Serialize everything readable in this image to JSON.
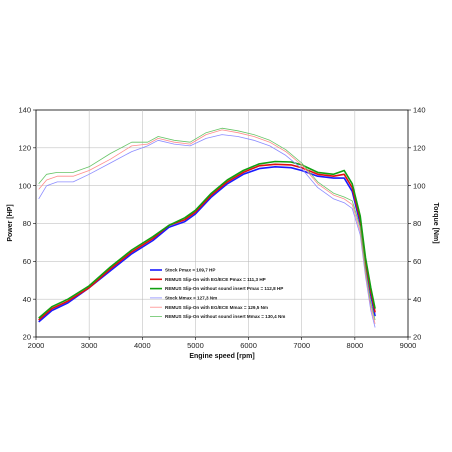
{
  "chart_data": {
    "type": "line",
    "xlabel": "Engine speed [rpm]",
    "ylabel_left": "Power [HP]",
    "ylabel_right": "Torque [Nm]",
    "xlim": [
      2000,
      9000
    ],
    "ylim_left": [
      20,
      140
    ],
    "ylim_right": [
      20,
      140
    ],
    "x_ticks": [
      "2000",
      "3000",
      "4000",
      "5000",
      "6000",
      "7000",
      "8000",
      "9000"
    ],
    "y_ticks_left": [
      "20",
      "40",
      "60",
      "80",
      "100",
      "120",
      "140"
    ],
    "y_ticks_right": [
      "20",
      "40",
      "60",
      "80",
      "100",
      "120",
      "140"
    ],
    "grid": true,
    "legend_position": "lower-right",
    "series": [
      {
        "name": "Stock Pmax = 109,7 HP",
        "axis": "left",
        "color": "#1a1aff",
        "width": 1.6,
        "points": [
          [
            2050,
            28
          ],
          [
            2300,
            34
          ],
          [
            2600,
            38
          ],
          [
            3000,
            46
          ],
          [
            3400,
            55
          ],
          [
            3800,
            64
          ],
          [
            4200,
            71
          ],
          [
            4500,
            78
          ],
          [
            4800,
            81
          ],
          [
            5000,
            85
          ],
          [
            5300,
            94
          ],
          [
            5600,
            101
          ],
          [
            5900,
            106
          ],
          [
            6200,
            109
          ],
          [
            6500,
            110
          ],
          [
            6800,
            109.5
          ],
          [
            7000,
            108
          ],
          [
            7300,
            105
          ],
          [
            7600,
            104
          ],
          [
            7800,
            104
          ],
          [
            7950,
            97
          ],
          [
            8100,
            80
          ],
          [
            8200,
            58
          ],
          [
            8300,
            42
          ],
          [
            8380,
            31
          ]
        ]
      },
      {
        "name": "REMUS Slip-On with EG/ECE Pmax = 111,3 HP",
        "axis": "left",
        "color": "#e01010",
        "width": 1.6,
        "points": [
          [
            2050,
            29
          ],
          [
            2300,
            35
          ],
          [
            2600,
            39
          ],
          [
            3000,
            46
          ],
          [
            3400,
            56
          ],
          [
            3800,
            65
          ],
          [
            4200,
            72
          ],
          [
            4500,
            79
          ],
          [
            4800,
            82
          ],
          [
            5000,
            86
          ],
          [
            5300,
            95
          ],
          [
            5600,
            102
          ],
          [
            5900,
            107
          ],
          [
            6200,
            110.5
          ],
          [
            6500,
            111.3
          ],
          [
            6800,
            111
          ],
          [
            7000,
            109.5
          ],
          [
            7300,
            106
          ],
          [
            7600,
            105
          ],
          [
            7800,
            106
          ],
          [
            7950,
            99
          ],
          [
            8100,
            82
          ],
          [
            8200,
            60
          ],
          [
            8300,
            44
          ],
          [
            8380,
            33
          ]
        ]
      },
      {
        "name": "REMUS Slip-On without sound insert Pmax = 112,8 HP",
        "axis": "left",
        "color": "#10a010",
        "width": 1.6,
        "points": [
          [
            2050,
            30
          ],
          [
            2300,
            36
          ],
          [
            2600,
            40
          ],
          [
            3000,
            47
          ],
          [
            3400,
            57
          ],
          [
            3800,
            66
          ],
          [
            4200,
            73
          ],
          [
            4500,
            79
          ],
          [
            4800,
            83
          ],
          [
            5000,
            87
          ],
          [
            5300,
            96
          ],
          [
            5600,
            103
          ],
          [
            5900,
            108
          ],
          [
            6200,
            111.5
          ],
          [
            6500,
            112.8
          ],
          [
            6800,
            112.5
          ],
          [
            7000,
            111
          ],
          [
            7300,
            107
          ],
          [
            7600,
            106
          ],
          [
            7800,
            108
          ],
          [
            7950,
            101
          ],
          [
            8100,
            84
          ],
          [
            8200,
            62
          ],
          [
            8300,
            46
          ],
          [
            8380,
            35
          ]
        ]
      },
      {
        "name": "Stock Mmax = 127,3 Nm",
        "axis": "right",
        "color": "#8c8cff",
        "width": 0.8,
        "points": [
          [
            2050,
            93
          ],
          [
            2200,
            100
          ],
          [
            2400,
            102
          ],
          [
            2700,
            102
          ],
          [
            3000,
            106
          ],
          [
            3400,
            112
          ],
          [
            3800,
            118
          ],
          [
            4100,
            121
          ],
          [
            4300,
            124
          ],
          [
            4600,
            122
          ],
          [
            4900,
            121
          ],
          [
            5200,
            125
          ],
          [
            5500,
            127
          ],
          [
            5800,
            126
          ],
          [
            6100,
            124
          ],
          [
            6400,
            121
          ],
          [
            6700,
            116
          ],
          [
            7000,
            109
          ],
          [
            7300,
            99
          ],
          [
            7600,
            93
          ],
          [
            7800,
            91
          ],
          [
            7950,
            88
          ],
          [
            8100,
            74
          ],
          [
            8200,
            52
          ],
          [
            8300,
            34
          ],
          [
            8380,
            25
          ]
        ]
      },
      {
        "name": "REMUS Slip-On with EG/ECE Mmax = 129,5 Nm",
        "axis": "right",
        "color": "#ff8c8c",
        "width": 0.8,
        "points": [
          [
            2050,
            98
          ],
          [
            2200,
            103
          ],
          [
            2400,
            105
          ],
          [
            2700,
            105
          ],
          [
            3000,
            108
          ],
          [
            3400,
            114
          ],
          [
            3800,
            121
          ],
          [
            4100,
            122
          ],
          [
            4300,
            125
          ],
          [
            4600,
            123
          ],
          [
            4900,
            122
          ],
          [
            5200,
            127
          ],
          [
            5500,
            129.5
          ],
          [
            5800,
            128
          ],
          [
            6100,
            126
          ],
          [
            6400,
            123
          ],
          [
            6700,
            118
          ],
          [
            7000,
            111
          ],
          [
            7300,
            101
          ],
          [
            7600,
            95
          ],
          [
            7800,
            93
          ],
          [
            7950,
            90
          ],
          [
            8100,
            76
          ],
          [
            8200,
            54
          ],
          [
            8300,
            36
          ],
          [
            8380,
            27
          ]
        ]
      },
      {
        "name": "REMUS Slip-On without sound insert Mmax = 130,4 Nm",
        "axis": "right",
        "color": "#66c466",
        "width": 0.8,
        "points": [
          [
            2050,
            101
          ],
          [
            2200,
            106
          ],
          [
            2400,
            107
          ],
          [
            2700,
            107
          ],
          [
            3000,
            110
          ],
          [
            3400,
            117
          ],
          [
            3800,
            123
          ],
          [
            4100,
            123
          ],
          [
            4300,
            126
          ],
          [
            4600,
            124
          ],
          [
            4900,
            123
          ],
          [
            5200,
            128
          ],
          [
            5500,
            130.4
          ],
          [
            5800,
            129
          ],
          [
            6100,
            127
          ],
          [
            6400,
            124
          ],
          [
            6700,
            119
          ],
          [
            7000,
            112
          ],
          [
            7300,
            102
          ],
          [
            7600,
            96
          ],
          [
            7800,
            94
          ],
          [
            7950,
            92
          ],
          [
            8100,
            78
          ],
          [
            8200,
            56
          ],
          [
            8300,
            38
          ],
          [
            8380,
            29
          ]
        ]
      }
    ]
  }
}
